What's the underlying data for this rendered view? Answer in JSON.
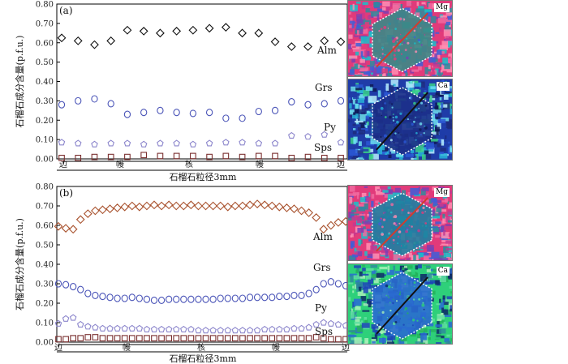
{
  "chart_data": [
    {
      "type": "scatter",
      "panel_label": "(a)",
      "ylabel": "石榴石成分含量(p.f.u.)",
      "xlabel": "石榴石粒径3mm",
      "ylim": [
        0,
        0.8
      ],
      "yticks": [
        "0.00",
        "0.10",
        "0.20",
        "0.30",
        "0.40",
        "0.50",
        "0.60",
        "0.70",
        "0.80"
      ],
      "position_labels": [
        "边",
        "幔",
        "核",
        "幔",
        "边"
      ],
      "series": [
        {
          "name": "Alm",
          "marker": "diamond",
          "color": "#111111",
          "values": [
            0.625,
            0.61,
            0.59,
            0.61,
            0.665,
            0.66,
            0.65,
            0.66,
            0.665,
            0.675,
            0.68,
            0.65,
            0.65,
            0.605,
            0.58,
            0.58,
            0.61,
            0.605
          ]
        },
        {
          "name": "Grs",
          "marker": "circle",
          "color": "#4b55b8",
          "values": [
            0.28,
            0.3,
            0.31,
            0.285,
            0.23,
            0.24,
            0.25,
            0.24,
            0.235,
            0.24,
            0.21,
            0.21,
            0.245,
            0.25,
            0.295,
            0.28,
            0.285,
            0.3
          ]
        },
        {
          "name": "Py",
          "marker": "pentagon",
          "color": "#8c86cc",
          "values": [
            0.085,
            0.08,
            0.075,
            0.08,
            0.08,
            0.075,
            0.08,
            0.08,
            0.075,
            0.08,
            0.085,
            0.085,
            0.08,
            0.08,
            0.12,
            0.115,
            0.125,
            0.085
          ]
        },
        {
          "name": "Sps",
          "marker": "square",
          "color": "#7a2f2f",
          "values": [
            0.005,
            0.005,
            0.01,
            0.01,
            0.01,
            0.02,
            0.015,
            0.015,
            0.015,
            0.01,
            0.015,
            0.01,
            0.015,
            0.015,
            0.005,
            0.01,
            0.005,
            0.005
          ]
        }
      ]
    },
    {
      "type": "scatter",
      "panel_label": "(b)",
      "ylabel": "石榴石成分含量(p.f.u.)",
      "xlabel": "石榴石粒径3mm",
      "ylim": [
        0,
        0.8
      ],
      "yticks": [
        "0.00",
        "0.10",
        "0.20",
        "0.30",
        "0.40",
        "0.50",
        "0.60",
        "0.70",
        "0.80"
      ],
      "position_labels": [
        "边",
        "幔",
        "核",
        "幔",
        "边"
      ],
      "series": [
        {
          "name": "Alm",
          "marker": "diamond",
          "color": "#a9532f",
          "values": [
            0.595,
            0.585,
            0.58,
            0.63,
            0.66,
            0.675,
            0.68,
            0.685,
            0.69,
            0.695,
            0.7,
            0.695,
            0.7,
            0.705,
            0.7,
            0.705,
            0.7,
            0.7,
            0.705,
            0.7,
            0.7,
            0.7,
            0.7,
            0.695,
            0.7,
            0.7,
            0.705,
            0.71,
            0.705,
            0.7,
            0.695,
            0.69,
            0.685,
            0.675,
            0.665,
            0.64,
            0.58,
            0.6,
            0.615,
            0.62
          ]
        },
        {
          "name": "Grs",
          "marker": "circle",
          "color": "#4b55b8",
          "values": [
            0.3,
            0.295,
            0.285,
            0.27,
            0.25,
            0.24,
            0.235,
            0.23,
            0.225,
            0.225,
            0.23,
            0.225,
            0.22,
            0.215,
            0.215,
            0.22,
            0.22,
            0.22,
            0.22,
            0.22,
            0.22,
            0.22,
            0.225,
            0.225,
            0.225,
            0.225,
            0.23,
            0.23,
            0.23,
            0.23,
            0.235,
            0.235,
            0.24,
            0.24,
            0.25,
            0.27,
            0.3,
            0.31,
            0.3,
            0.29
          ]
        },
        {
          "name": "Py",
          "marker": "pentagon",
          "color": "#8c86cc",
          "values": [
            0.095,
            0.12,
            0.125,
            0.09,
            0.08,
            0.075,
            0.07,
            0.07,
            0.07,
            0.07,
            0.07,
            0.07,
            0.065,
            0.065,
            0.065,
            0.065,
            0.065,
            0.065,
            0.065,
            0.06,
            0.06,
            0.06,
            0.06,
            0.06,
            0.06,
            0.06,
            0.06,
            0.06,
            0.065,
            0.065,
            0.065,
            0.065,
            0.07,
            0.07,
            0.075,
            0.09,
            0.1,
            0.095,
            0.09,
            0.085
          ]
        },
        {
          "name": "Sps",
          "marker": "square",
          "color": "#7a2f2f",
          "values": [
            0.015,
            0.015,
            0.02,
            0.02,
            0.025,
            0.025,
            0.02,
            0.02,
            0.02,
            0.02,
            0.02,
            0.02,
            0.02,
            0.02,
            0.02,
            0.02,
            0.02,
            0.02,
            0.02,
            0.02,
            0.02,
            0.02,
            0.02,
            0.02,
            0.02,
            0.02,
            0.02,
            0.02,
            0.02,
            0.02,
            0.02,
            0.02,
            0.02,
            0.02,
            0.02,
            0.025,
            0.02,
            0.015,
            0.015,
            0.015
          ]
        }
      ]
    }
  ],
  "maps": [
    {
      "label": "Mg",
      "line_color": "#d23c2c"
    },
    {
      "label": "Ca",
      "line_color": "#111111"
    },
    {
      "label": "Mg",
      "line_color": "#d23c2c"
    },
    {
      "label": "Ca",
      "line_color": "#111111"
    }
  ]
}
